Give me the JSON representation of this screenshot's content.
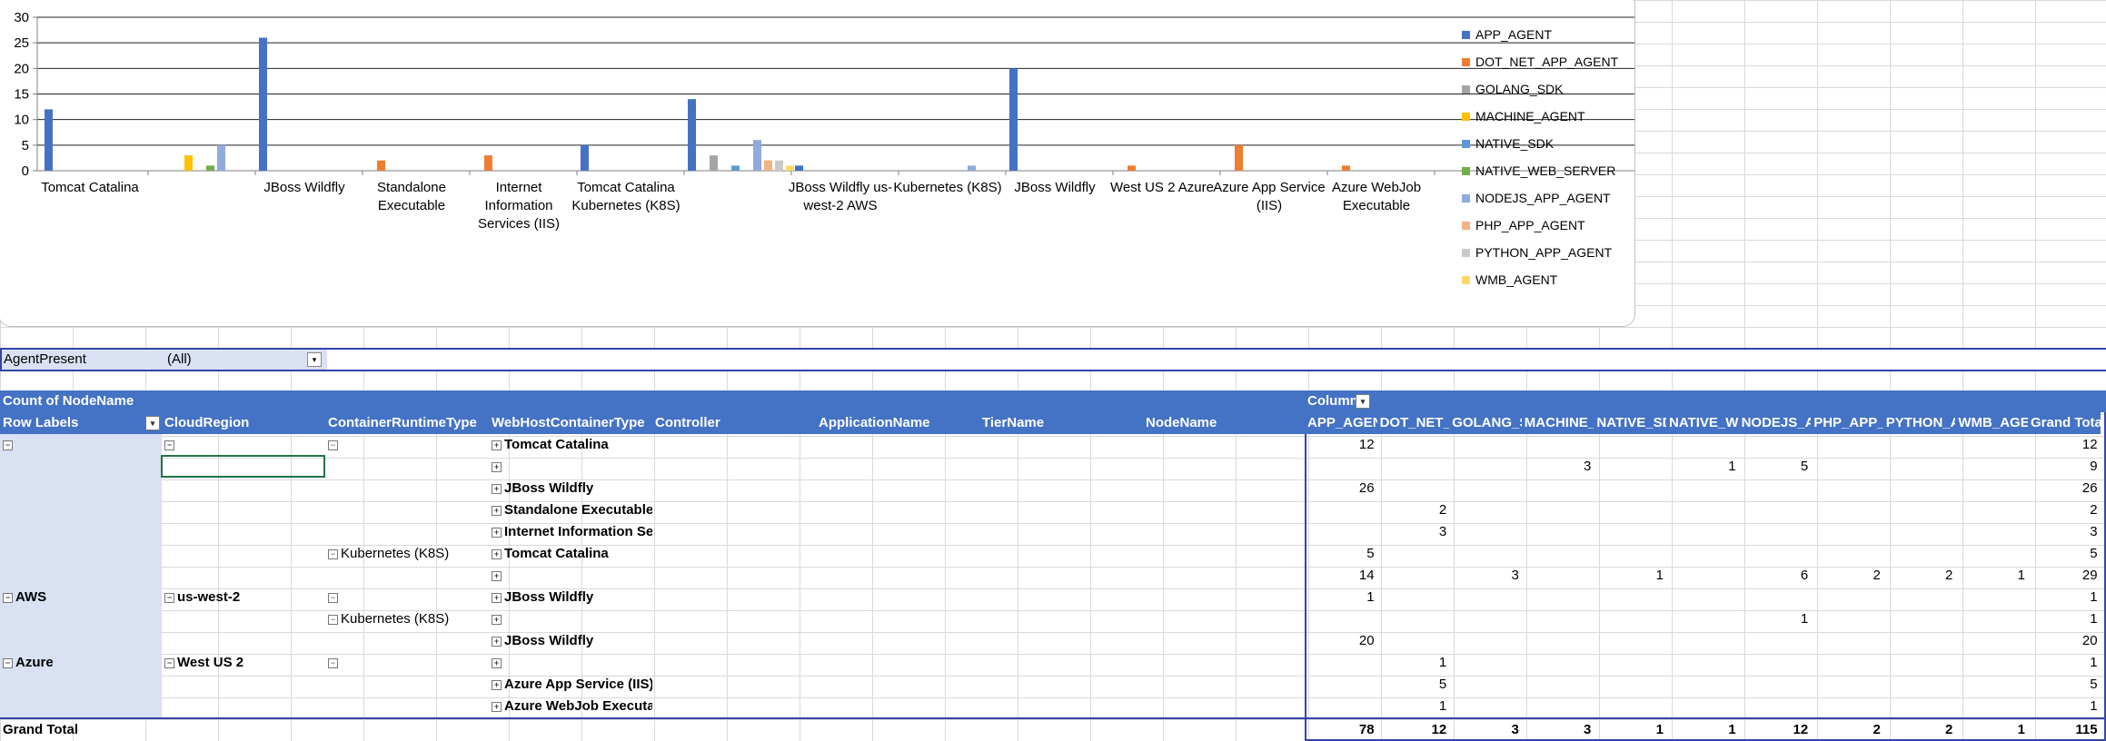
{
  "chart_data": {
    "type": "bar",
    "ylim": [
      0,
      30
    ],
    "yticks": [
      "0",
      "5",
      "10",
      "15",
      "20",
      "25",
      "30"
    ],
    "grid": true,
    "legend_position": "right",
    "categories": [
      "Tomcat Catalina",
      "",
      "JBoss Wildfly",
      "Standalone Executable",
      "Internet Information Services (IIS)",
      "Tomcat Catalina Kubernetes (K8S)",
      "",
      "JBoss Wildfly us-west-2 AWS",
      "Kubernetes (K8S)",
      "JBoss Wildfly",
      "West US 2 Azure",
      "Azure App Service (IIS)",
      "Azure WebJob Executable"
    ],
    "series": [
      {
        "name": "APP_AGENT",
        "color": "#4472c4",
        "values": [
          12,
          null,
          26,
          null,
          null,
          5,
          14,
          1,
          null,
          20,
          null,
          null,
          null
        ]
      },
      {
        "name": "DOT_NET_APP_AGENT",
        "color": "#ed7d31",
        "values": [
          null,
          null,
          null,
          2,
          3,
          null,
          null,
          null,
          null,
          null,
          1,
          5,
          1
        ]
      },
      {
        "name": "GOLANG_SDK",
        "color": "#a5a5a5",
        "values": [
          null,
          null,
          null,
          null,
          null,
          null,
          3,
          null,
          null,
          null,
          null,
          null,
          null
        ]
      },
      {
        "name": "MACHINE_AGENT",
        "color": "#ffc000",
        "values": [
          null,
          3,
          null,
          null,
          null,
          null,
          null,
          null,
          null,
          null,
          null,
          null,
          null
        ]
      },
      {
        "name": "NATIVE_SDK",
        "color": "#5b9bd5",
        "values": [
          null,
          null,
          null,
          null,
          null,
          null,
          1,
          null,
          null,
          null,
          null,
          null,
          null
        ]
      },
      {
        "name": "NATIVE_WEB_SERVER",
        "color": "#70ad47",
        "values": [
          null,
          1,
          null,
          null,
          null,
          null,
          null,
          null,
          null,
          null,
          null,
          null,
          null
        ]
      },
      {
        "name": "NODEJS_APP_AGENT",
        "color": "#8faadc",
        "values": [
          null,
          5,
          null,
          null,
          null,
          null,
          6,
          null,
          1,
          null,
          null,
          null,
          null
        ]
      },
      {
        "name": "PHP_APP_AGENT",
        "color": "#f4b183",
        "values": [
          null,
          null,
          null,
          null,
          null,
          null,
          2,
          null,
          null,
          null,
          null,
          null,
          null
        ]
      },
      {
        "name": "PYTHON_APP_AGENT",
        "color": "#c9c9c9",
        "values": [
          null,
          null,
          null,
          null,
          null,
          null,
          2,
          null,
          null,
          null,
          null,
          null,
          null
        ]
      },
      {
        "name": "WMB_AGENT",
        "color": "#ffd966",
        "values": [
          null,
          null,
          null,
          null,
          null,
          null,
          1,
          null,
          null,
          null,
          null,
          null,
          null
        ]
      }
    ]
  },
  "filter": {
    "label": "AgentPresent",
    "value": "(All)"
  },
  "pivot": {
    "title": "Count of NodeName",
    "column_labels_header": "Column",
    "row_headers": [
      "Row Labels",
      "CloudRegion",
      "ContainerRuntimeType",
      "WebHostContainerType",
      "Controller",
      "ApplicationName",
      "TierName",
      "NodeName"
    ],
    "value_headers": [
      "APP_AGENT",
      "DOT_NET_APP_AGENT",
      "GOLANG_SDK",
      "MACHINE_AGENT",
      "NATIVE_SDK",
      "NATIVE_WEB_SERVER",
      "NODEJS_APP_AGENT",
      "PHP_APP_AGENT",
      "PYTHON_APP_AGENT",
      "WMB_AGENT",
      "Grand Total"
    ],
    "rows": [
      {
        "c0": "",
        "c1": "",
        "c2": "",
        "c3": "Tomcat Catalina",
        "v": [
          "12",
          "",
          "",
          "",
          "",
          "",
          "",
          "",
          "",
          "",
          "12"
        ]
      },
      {
        "c0": "",
        "c1": "",
        "c2": "",
        "c3": "",
        "v": [
          "",
          "",
          "",
          "3",
          "",
          "1",
          "5",
          "",
          "",
          "",
          "9"
        ]
      },
      {
        "c0": "",
        "c1": "",
        "c2": "",
        "c3": "JBoss Wildfly",
        "v": [
          "26",
          "",
          "",
          "",
          "",
          "",
          "",
          "",
          "",
          "",
          "26"
        ]
      },
      {
        "c0": "",
        "c1": "",
        "c2": "",
        "c3": "Standalone Executable",
        "v": [
          "",
          "2",
          "",
          "",
          "",
          "",
          "",
          "",
          "",
          "",
          "2"
        ]
      },
      {
        "c0": "",
        "c1": "",
        "c2": "",
        "c3": "Internet Information Services (IIS)",
        "v": [
          "",
          "3",
          "",
          "",
          "",
          "",
          "",
          "",
          "",
          "",
          "3"
        ]
      },
      {
        "c0": "",
        "c1": "",
        "c2": "Kubernetes (K8S)",
        "c3": "Tomcat Catalina",
        "v": [
          "5",
          "",
          "",
          "",
          "",
          "",
          "",
          "",
          "",
          "",
          "5"
        ]
      },
      {
        "c0": "",
        "c1": "",
        "c2": "",
        "c3": "",
        "v": [
          "14",
          "",
          "3",
          "",
          "1",
          "",
          "6",
          "2",
          "2",
          "1",
          "29"
        ]
      },
      {
        "c0": "AWS",
        "c1": "us-west-2",
        "c2": "",
        "c3": "JBoss Wildfly",
        "v": [
          "1",
          "",
          "",
          "",
          "",
          "",
          "",
          "",
          "",
          "",
          "1"
        ]
      },
      {
        "c0": "",
        "c1": "",
        "c2": "Kubernetes (K8S)",
        "c3": "",
        "v": [
          "",
          "",
          "",
          "",
          "",
          "",
          "1",
          "",
          "",
          "",
          "1"
        ]
      },
      {
        "c0": "",
        "c1": "",
        "c2": "",
        "c3": "JBoss Wildfly",
        "v": [
          "20",
          "",
          "",
          "",
          "",
          "",
          "",
          "",
          "",
          "",
          "20"
        ]
      },
      {
        "c0": "Azure",
        "c1": "West US 2",
        "c2": "",
        "c3": "",
        "v": [
          "",
          "1",
          "",
          "",
          "",
          "",
          "",
          "",
          "",
          "",
          "1"
        ]
      },
      {
        "c0": "",
        "c1": "",
        "c2": "",
        "c3": "Azure App Service (IIS)",
        "v": [
          "",
          "5",
          "",
          "",
          "",
          "",
          "",
          "",
          "",
          "",
          "5"
        ]
      },
      {
        "c0": "",
        "c1": "",
        "c2": "",
        "c3": "Azure WebJob Executable",
        "v": [
          "",
          "1",
          "",
          "",
          "",
          "",
          "",
          "",
          "",
          "",
          "1"
        ]
      }
    ],
    "grand_total_label": "Grand Total",
    "grand_total": [
      "78",
      "12",
      "3",
      "3",
      "1",
      "1",
      "12",
      "2",
      "2",
      "1",
      "115"
    ]
  }
}
